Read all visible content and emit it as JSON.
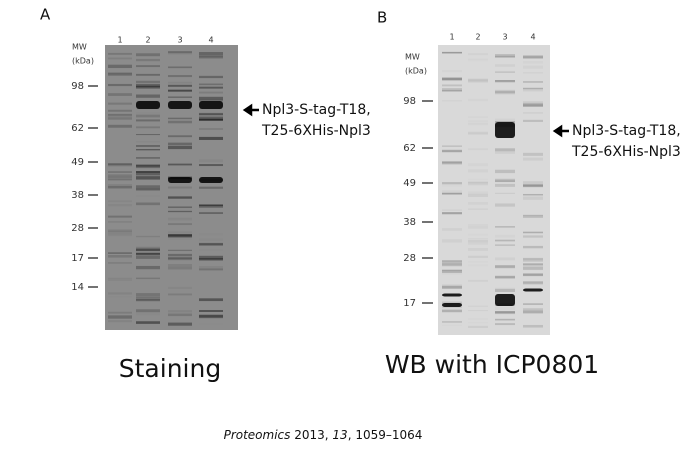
{
  "panels": [
    {
      "label": "A",
      "mw_label": "MW",
      "mw_unit": "(kDa)",
      "lanes": [
        "1",
        "2",
        "3",
        "4"
      ],
      "markers": [
        "98",
        "62",
        "49",
        "38",
        "28",
        "17",
        "14"
      ],
      "annotation": [
        "Npl3-S-tag-T18,",
        "T25-6XHis-Npl3"
      ],
      "caption": "Staining"
    },
    {
      "label": "B",
      "mw_label": "MW",
      "mw_unit": "(kDa)",
      "lanes": [
        "1",
        "2",
        "3",
        "4"
      ],
      "markers": [
        "98",
        "62",
        "49",
        "38",
        "28",
        "17"
      ],
      "annotation": [
        "Npl3-S-tag-T18,",
        "T25-6XHis-Npl3"
      ],
      "caption": "WB with ICP0801"
    }
  ],
  "citation": {
    "journal": "Proteomics",
    "year": "2013,",
    "volume": "13",
    "pages": ", 1059–1064"
  }
}
